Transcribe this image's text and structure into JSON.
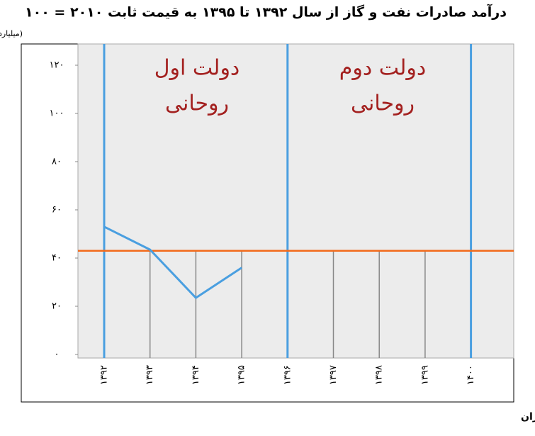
{
  "chart_data": {
    "type": "line",
    "title": "درآمد صادرات نفت و گاز از سال ۱۳۹۲ تا ۱۳۹۵ به قیمت ثابت ۲۰۱۰ = ۱۰۰",
    "y_label": "(میلیارد دلار)",
    "source": "منبع: بانک مرکزی ایران",
    "categories": [
      "۱۳۹۲",
      "۱۳۹۳",
      "۱۳۹۴",
      "۱۳۹۵",
      "۱۳۹۶",
      "۱۳۹۷",
      "۱۳۹۸",
      "۱۳۹۹",
      "۱۴۰۰"
    ],
    "series": [
      {
        "color": "#4a9fe0",
        "values": [
          53,
          43.5,
          23.5,
          36,
          null,
          null,
          null,
          null,
          null
        ]
      }
    ],
    "reference_line": {
      "value": 43,
      "color": "#f26a1b"
    },
    "annotations": [
      {
        "lines": [
          "دولت اول",
          "روحانی"
        ],
        "color": "#a3201f"
      },
      {
        "lines": [
          "دولت دوم",
          "روحانی"
        ],
        "color": "#a3201f"
      }
    ],
    "ylim": [
      0,
      130
    ],
    "yticks": [
      {
        "value": 0,
        "label": "۰"
      },
      {
        "value": 20,
        "label": "۲۰"
      },
      {
        "value": 40,
        "label": "۴۰"
      },
      {
        "value": 60,
        "label": "۶۰"
      },
      {
        "value": 80,
        "label": "۸۰"
      },
      {
        "value": 100,
        "label": "۱۰۰"
      },
      {
        "value": 120,
        "label": "۱۲۰"
      }
    ]
  }
}
